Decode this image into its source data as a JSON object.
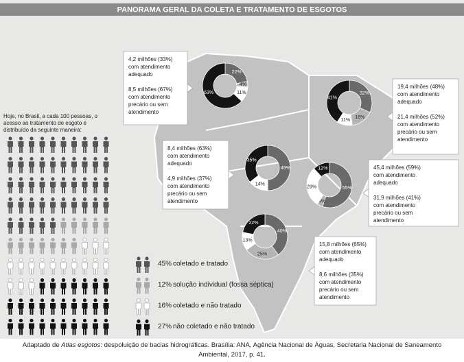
{
  "header": {
    "title": "PANORAMA GERAL DA COLETA E TRATAMENTO DE ESGOTOS"
  },
  "intro": [
    "Hoje, no Brasil, a cada 100 pessoas, o",
    "acesso ao tratamento de esgoto é",
    "distribuído da seguinte maneira:"
  ],
  "legend": [
    {
      "value": 45,
      "label": "45%",
      "text": "coletado e tratado",
      "color": "#555555"
    },
    {
      "value": 12,
      "label": "12%",
      "text": "solução individual (fossa séptica)",
      "color": "#a8a8a8"
    },
    {
      "value": 16,
      "label": "16%",
      "text": "coletado e não tratado",
      "color": "#ffffff"
    },
    {
      "value": 27,
      "label": "27%",
      "text": "não coletado e não tratado",
      "color": "#141414"
    }
  ],
  "chart_data": [
    {
      "type": "donut",
      "values": [
        22,
        4,
        11,
        63
      ],
      "value_labels": [
        "22%",
        "4%",
        "11%",
        "63%"
      ],
      "colors": [
        "#6a6a6a",
        "#b4b4b4",
        "#ffffff",
        "#141414"
      ]
    },
    {
      "type": "donut",
      "values": [
        32,
        16,
        11,
        41
      ],
      "value_labels": [
        "32%",
        "16%",
        "11%",
        "41%"
      ],
      "colors": [
        "#6a6a6a",
        "#b4b4b4",
        "#ffffff",
        "#141414"
      ]
    },
    {
      "type": "donut",
      "values": [
        49,
        14,
        35
      ],
      "value_labels": [
        "49%",
        "14%",
        "35%"
      ],
      "colors": [
        "#6a6a6a",
        "#ffffff",
        "#141414"
      ]
    },
    {
      "type": "donut",
      "values": [
        55,
        4,
        29,
        12
      ],
      "value_labels": [
        "55%",
        "4%",
        "29%",
        "12%"
      ],
      "colors": [
        "#6a6a6a",
        "#b4b4b4",
        "#ffffff",
        "#141414"
      ]
    },
    {
      "type": "donut",
      "values": [
        40,
        25,
        13,
        22
      ],
      "value_labels": [
        "40%",
        "25%",
        "13%",
        "22%"
      ],
      "colors": [
        "#6a6a6a",
        "#b4b4b4",
        "#ffffff",
        "#141414"
      ]
    }
  ],
  "boxes": [
    {
      "lines": [
        "4,2 milhões (33%)",
        "com atendimento",
        "adequado",
        "",
        "8,5 milhões (67%)",
        "com atendimento",
        "precário ou sem",
        "atendimento"
      ]
    },
    {
      "lines": [
        "19,4 milhões (48%)",
        "com atendimento",
        "adequado",
        "",
        "21,4 milhões (52%)",
        "com atendimento",
        "precário ou sem",
        "atendimento"
      ]
    },
    {
      "lines": [
        "8,4 milhões (63%)",
        "com atendimento",
        "adequado",
        "",
        "4,9 milhões (37%)",
        "com atendimento",
        "precário ou sem",
        "atendimento"
      ]
    },
    {
      "lines": [
        "45,4 milhões (59%)",
        "com atendimento",
        "adequado",
        "",
        "31,9 milhões (41%)",
        "com atendimento",
        "precário ou sem",
        "atendimento"
      ]
    },
    {
      "lines": [
        "15,8 milhões (65%)",
        "com atendimento",
        "adequado",
        "",
        "8,6 milhões (35%)",
        "com atendimento",
        "precário ou sem",
        "atendimento"
      ]
    }
  ],
  "caption": {
    "before": "Adaptado de ",
    "italic": "Atlas esgotos",
    "after": ": despoluição de bacias hidrográficas. Brasília: ANA, Agência Nacional de Águas, Secretaria Nacional de Saneamento",
    "line2": "Ambiental, 2017, p. 41."
  }
}
